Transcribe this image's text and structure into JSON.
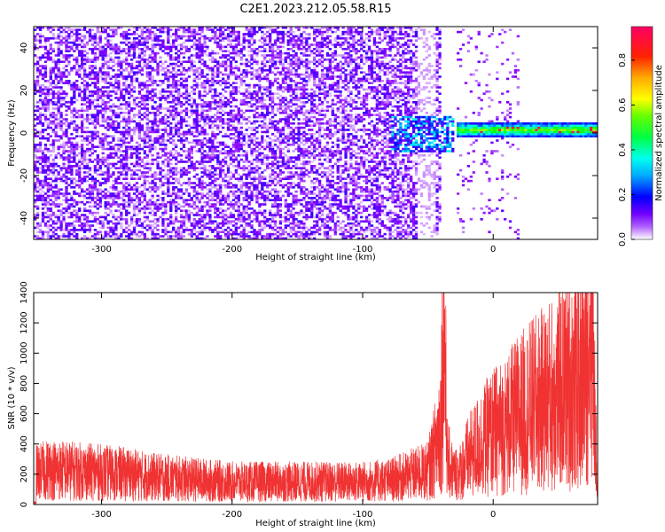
{
  "title": "C2E1.2023.212.05.58.R15",
  "chart_data": [
    {
      "type": "heatmap",
      "xlabel": "Height of straight line (km)",
      "ylabel": "Frequency (Hz)",
      "xlim": [
        -352,
        80
      ],
      "ylim": [
        -50,
        50
      ],
      "xticks": [
        -300,
        -200,
        -100,
        0
      ],
      "yticks": [
        -40,
        -20,
        0,
        20,
        40
      ],
      "colorbar": {
        "label": "Normalized spectral amplitude",
        "range": [
          0,
          0.95
        ],
        "ticks": [
          0.0,
          0.2,
          0.4,
          0.6,
          0.8
        ],
        "colors": [
          "#ffffff",
          "#8800ff",
          "#0000ff",
          "#00ffff",
          "#00ff00",
          "#ffff00",
          "#ff8800",
          "#ff0000",
          "#ff0088"
        ]
      },
      "features": [
        {
          "description_x_range": [
            -352,
            -40
          ],
          "freq_range": [
            -50,
            50
          ],
          "typical_amplitude": 0.1
        },
        {
          "description_x_range": [
            -80,
            -30
          ],
          "freq_range": [
            -10,
            8
          ],
          "typical_amplitude": 0.25
        },
        {
          "description_x_range": [
            -30,
            80
          ],
          "freq_center": 1,
          "freq_halfwidth": 3,
          "typical_amplitude": 0.45,
          "peak_amplitude": 0.9
        }
      ]
    },
    {
      "type": "line",
      "xlabel": "Height of straight line (km)",
      "ylabel": "SNR (10 * v/v)",
      "xlim": [
        -352,
        80
      ],
      "ylim": [
        0,
        1400
      ],
      "xticks": [
        -300,
        -200,
        -100,
        0
      ],
      "yticks": [
        0,
        200,
        400,
        600,
        800,
        1000,
        1200,
        1400
      ],
      "color": "#f03232",
      "series": [
        {
          "x": [
            -350,
            -340,
            -320,
            -300,
            -280,
            -260,
            -240,
            -220,
            -200,
            -180,
            -160,
            -140,
            -120,
            -100,
            -80,
            -60,
            -50,
            -45,
            -40,
            -38,
            -35,
            -30,
            -25,
            -20,
            -10,
            0,
            10,
            20,
            30,
            40,
            50,
            60,
            70,
            75,
            80
          ],
          "y": [
            210,
            230,
            220,
            210,
            200,
            180,
            170,
            160,
            150,
            150,
            150,
            150,
            150,
            150,
            160,
            200,
            220,
            350,
            550,
            1250,
            300,
            200,
            220,
            300,
            400,
            480,
            520,
            600,
            650,
            700,
            760,
            800,
            850,
            1400,
            10
          ]
        }
      ]
    }
  ]
}
